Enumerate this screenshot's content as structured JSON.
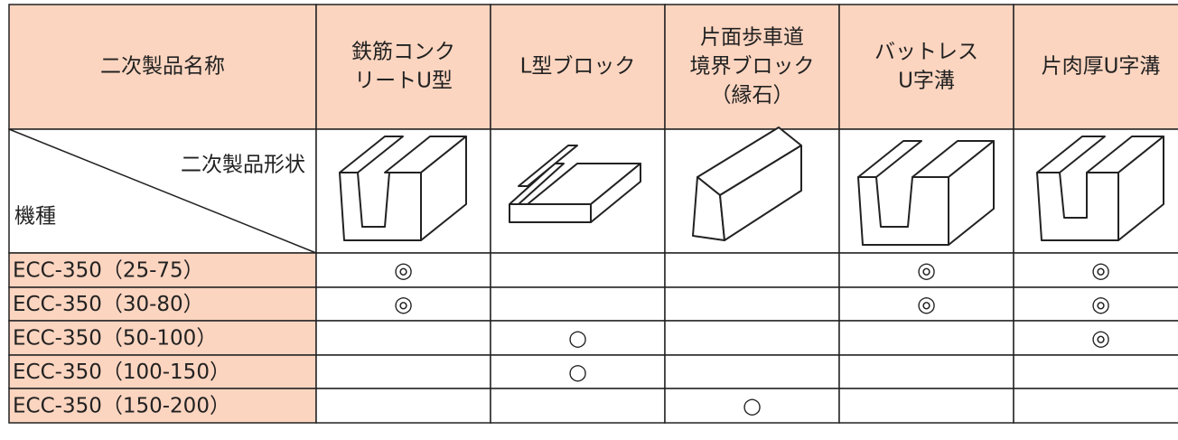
{
  "header": {
    "title": "二次製品名称",
    "columns": [
      {
        "lines": [
          "鉄筋コンク",
          "リートU型"
        ]
      },
      {
        "lines": [
          "L型ブロック"
        ]
      },
      {
        "lines": [
          "片面歩車道",
          "境界ブロック",
          "（縁石）"
        ]
      },
      {
        "lines": [
          "バットレス",
          "U字溝"
        ]
      },
      {
        "lines": [
          "片肉厚U字溝"
        ]
      }
    ]
  },
  "shape_row": {
    "shape_label": "二次製品形状",
    "model_label": "機種"
  },
  "rows": [
    {
      "model": "ECC-350（25-75）",
      "marks": [
        "◎",
        null,
        null,
        "◎",
        "◎"
      ]
    },
    {
      "model": "ECC-350（30-80）",
      "marks": [
        "◎",
        null,
        null,
        "◎",
        "◎"
      ]
    },
    {
      "model": "ECC-350（50-100）",
      "marks": [
        null,
        "○",
        null,
        null,
        "◎"
      ]
    },
    {
      "model": "ECC-350（100-150）",
      "marks": [
        null,
        "○",
        null,
        null,
        null
      ]
    },
    {
      "model": "ECC-350（150-200）",
      "marks": [
        null,
        null,
        "○",
        null,
        null
      ]
    }
  ]
}
